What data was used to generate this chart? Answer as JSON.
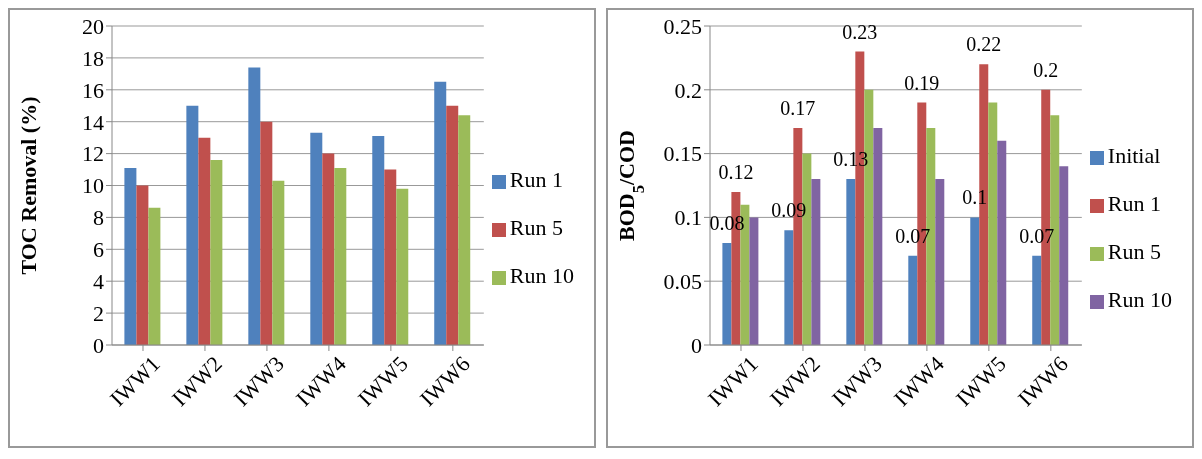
{
  "chart_data": [
    {
      "type": "bar",
      "ylabel": "TOC Removal (%)",
      "categories": [
        "IWW1",
        "IWW2",
        "IWW3",
        "IWW4",
        "IWW5",
        "IWW6"
      ],
      "series": [
        {
          "name": "Run 1",
          "color": "#4f81bd",
          "values": [
            11.1,
            15.0,
            17.4,
            13.3,
            13.1,
            16.5
          ]
        },
        {
          "name": "Run 5",
          "color": "#c0504d",
          "values": [
            10,
            13,
            14,
            12,
            11,
            15
          ]
        },
        {
          "name": "Run 10",
          "color": "#9bbb59",
          "values": [
            8.6,
            11.6,
            10.3,
            11.1,
            9.8,
            14.4
          ]
        }
      ],
      "ylim": [
        0,
        20
      ],
      "yticks": [
        0,
        2,
        4,
        6,
        8,
        10,
        12,
        14,
        16,
        18,
        20
      ],
      "grid": "y",
      "legend": "right"
    },
    {
      "type": "bar",
      "ylabel": "BOD$_{5}$/COD",
      "categories": [
        "IWW1",
        "IWW2",
        "IWW3",
        "IWW4",
        "IWW5",
        "IWW6"
      ],
      "series": [
        {
          "name": "Initial",
          "color": "#4f81bd",
          "values": [
            0.08,
            0.09,
            0.13,
            0.07,
            0.1,
            0.07
          ],
          "value_labels": [
            "0.08",
            "0.09",
            "0.13",
            "0.07",
            "0.1",
            "0.07"
          ]
        },
        {
          "name": "Run 1",
          "color": "#c0504d",
          "values": [
            0.12,
            0.17,
            0.23,
            0.19,
            0.22,
            0.2
          ],
          "value_labels": [
            "0.12",
            "0.17",
            "0.23",
            "0.19",
            "0.22",
            "0.2"
          ]
        },
        {
          "name": "Run 5",
          "color": "#9bbb59",
          "values": [
            0.11,
            0.15,
            0.2,
            0.17,
            0.19,
            0.18
          ]
        },
        {
          "name": "Run 10",
          "color": "#8064a2",
          "values": [
            0.1,
            0.13,
            0.17,
            0.13,
            0.16,
            0.14
          ]
        }
      ],
      "ylim": [
        0,
        0.25
      ],
      "yticks": [
        0,
        0.05,
        0.1,
        0.15,
        0.2,
        0.25
      ],
      "grid": "y",
      "legend": "right"
    }
  ]
}
